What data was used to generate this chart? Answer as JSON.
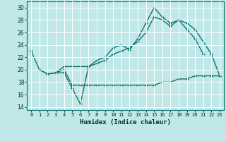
{
  "xlabel": "Humidex (Indice chaleur)",
  "xlim": [
    -0.5,
    23.5
  ],
  "ylim": [
    13.5,
    31
  ],
  "yticks": [
    14,
    16,
    18,
    20,
    22,
    24,
    26,
    28,
    30
  ],
  "xticks": [
    0,
    1,
    2,
    3,
    4,
    5,
    6,
    7,
    8,
    9,
    10,
    11,
    12,
    13,
    14,
    15,
    16,
    17,
    18,
    19,
    20,
    21,
    22,
    23
  ],
  "bg_color": "#c0e8e8",
  "grid_color": "#ffffff",
  "line_color": "#006868",
  "line1_x": [
    0,
    1,
    2,
    3,
    4,
    5,
    6,
    7,
    8,
    9,
    10,
    11,
    12,
    13,
    14,
    15,
    16,
    17,
    18,
    19,
    20,
    21
  ],
  "line1_y": [
    23.0,
    20.0,
    19.3,
    19.5,
    19.5,
    17.0,
    14.5,
    20.5,
    21.5,
    22.0,
    23.5,
    24.0,
    23.2,
    25.0,
    27.5,
    30.0,
    28.5,
    27.5,
    28.0,
    26.5,
    25.0,
    22.5
  ],
  "line2_x": [
    3,
    4,
    5,
    6,
    7,
    8,
    9,
    10,
    11,
    12,
    13,
    14,
    15,
    16,
    17,
    18,
    19,
    20,
    21,
    22,
    23
  ],
  "line2_y": [
    19.5,
    20.0,
    17.5,
    17.5,
    17.5,
    17.5,
    17.5,
    17.5,
    17.5,
    17.5,
    17.5,
    17.5,
    17.5,
    18.0,
    18.0,
    18.5,
    18.5,
    19.0,
    19.0,
    19.0,
    19.0
  ],
  "line3_x": [
    1,
    2,
    3,
    4,
    7,
    8,
    9,
    10,
    11,
    12,
    13,
    14,
    15,
    16,
    17,
    18,
    19,
    20,
    22,
    23
  ],
  "line3_y": [
    20.0,
    19.3,
    19.5,
    20.5,
    20.5,
    21.0,
    21.5,
    22.5,
    23.0,
    23.5,
    24.5,
    26.0,
    28.5,
    28.0,
    27.0,
    28.0,
    27.5,
    26.5,
    22.5,
    19.0
  ]
}
